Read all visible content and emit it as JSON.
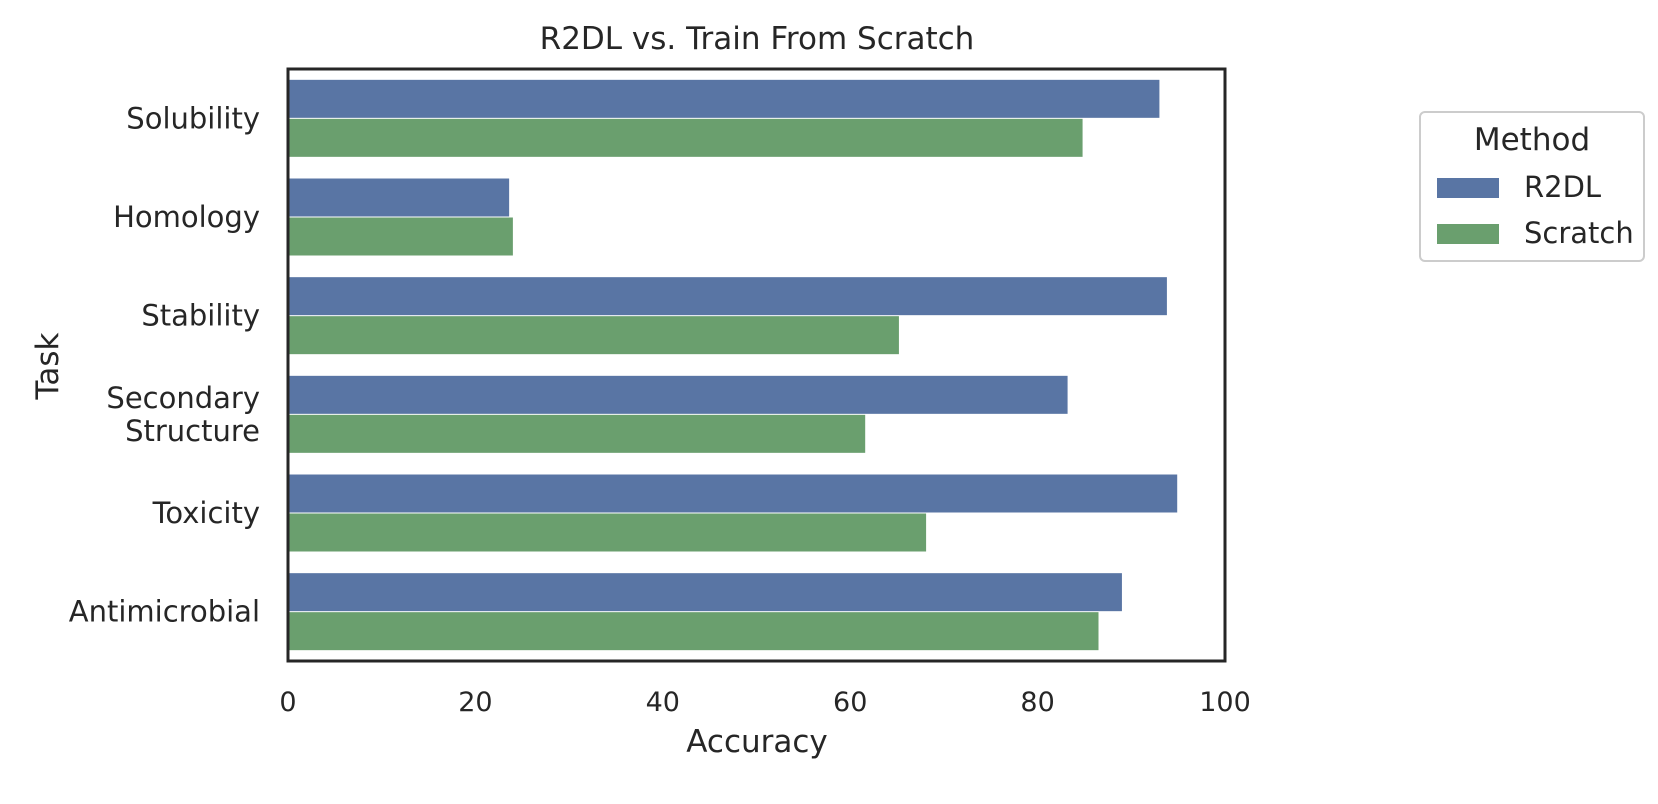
{
  "chart_data": {
    "type": "bar",
    "orientation": "horizontal",
    "title": "R2DL vs. Train From Scratch",
    "xlabel": "Accuracy",
    "ylabel": "Task",
    "xlim": [
      0,
      100
    ],
    "xticks": [
      0,
      20,
      40,
      60,
      80,
      100
    ],
    "grid": false,
    "categories": [
      [
        "Solubility"
      ],
      [
        "Homology"
      ],
      [
        "Stability"
      ],
      [
        "Secondary",
        "Structure"
      ],
      [
        "Toxicity"
      ],
      [
        "Antimicrobial"
      ]
    ],
    "series": [
      {
        "name": "R2DL",
        "color": "#5975a4",
        "values": [
          93.0,
          23.6,
          93.8,
          83.2,
          94.9,
          89.0
        ]
      },
      {
        "name": "Scratch",
        "color": "#6a9f6e",
        "values": [
          84.8,
          24.0,
          65.2,
          61.6,
          68.1,
          86.5
        ]
      }
    ],
    "legend": {
      "title": "Method",
      "placement": "outside-right"
    }
  }
}
